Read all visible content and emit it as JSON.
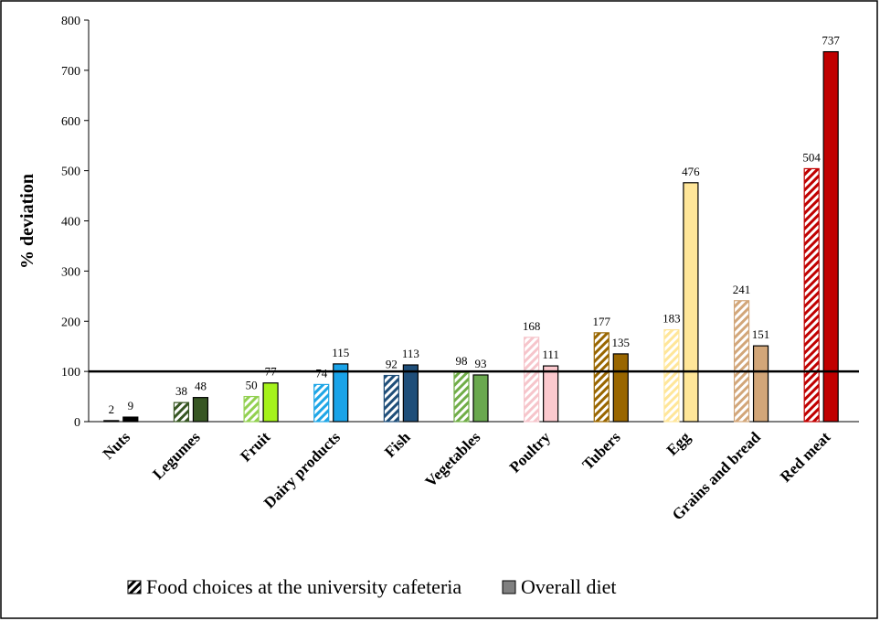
{
  "chart_data": {
    "type": "bar",
    "y_label": "% deviation",
    "categories": [
      "Nuts",
      "Legumes",
      "Fruit",
      "Dairy products",
      "Fish",
      "Vegetables",
      "Poultry",
      "Tubers",
      "Egg",
      "Grains and bread",
      "Red meat"
    ],
    "series": [
      {
        "name": "Food choices at the university cafeteria",
        "color": "#000000",
        "hatched": true,
        "colors": [
          "#000000",
          "#375623",
          "#92d050",
          "#1fa6e6",
          "#1f4e79",
          "#70ad47",
          "#f6c5cb",
          "#996600",
          "#ffe699",
          "#d2a679",
          "#c00000"
        ],
        "values": [
          2,
          38,
          50,
          74,
          92,
          98,
          168,
          177,
          183,
          241,
          504
        ]
      },
      {
        "name": "Overall diet",
        "color": "#808080",
        "hatched": false,
        "colors": [
          "#000000",
          "#375623",
          "#a5f21b",
          "#1aa3e8",
          "#1f4e79",
          "#6aa84f",
          "#fbc9ce",
          "#996600",
          "#ffe699",
          "#d2a679",
          "#c00000"
        ],
        "values": [
          9,
          48,
          77,
          115,
          113,
          93,
          111,
          135,
          476,
          151,
          737
        ]
      }
    ],
    "reference_line": 100,
    "ylim": [
      0,
      800
    ],
    "yticks": [
      0,
      100,
      200,
      300,
      400,
      500,
      600,
      700,
      800
    ]
  }
}
